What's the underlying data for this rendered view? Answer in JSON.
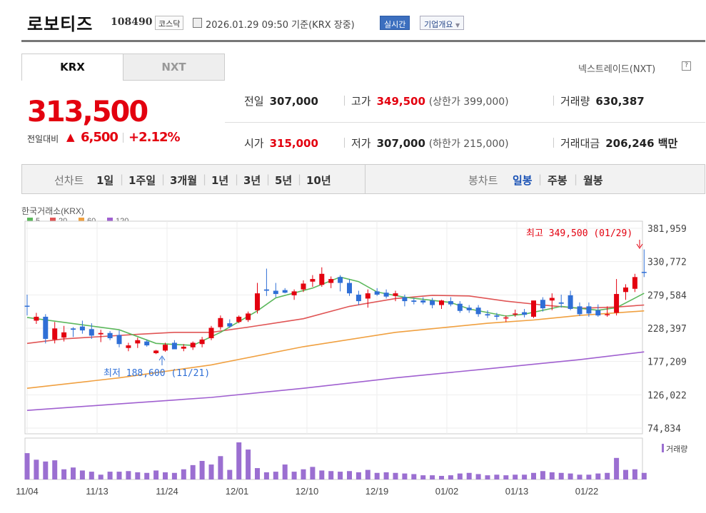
{
  "header": {
    "name": "로보티즈",
    "code": "108490",
    "market": "코스닥",
    "datetime": "2026.01.29 09:50",
    "basis": "기준(KRX 장중)",
    "realtime": "실시간",
    "corp_info": "기업개요"
  },
  "tabs": [
    "KRX",
    "NXT"
  ],
  "nxt_link": "넥스트레이드(NXT)",
  "nxt_help": "?",
  "quote": {
    "price": "313,500",
    "change_label": "전일대비",
    "change_arrow": "▲",
    "change": "6,500",
    "change_pct": "+2.12%"
  },
  "stats": {
    "prev_label": "전일",
    "prev": "307,000",
    "high_label": "고가",
    "high": "349,500",
    "upper": "(상한가 399,000)",
    "volume_label": "거래량",
    "volume": "630,387",
    "open_label": "시가",
    "open": "315,000",
    "low_label": "저가",
    "low": "307,000",
    "lower": "(하한가 215,000)",
    "value_label": "거래대금",
    "value": "206,246 백만"
  },
  "period_bar": {
    "label": "선차트",
    "items": [
      "1일",
      "1주일",
      "3개월",
      "1년",
      "3년",
      "5년",
      "10년"
    ],
    "candle_label": "봉차트",
    "candle_items": [
      "일봉",
      "주봉",
      "월봉"
    ],
    "selected_candle": "일봉"
  },
  "colors": {
    "up": "#e3000f",
    "down": "#2f6fd6",
    "ma5": "#5cb85c",
    "ma20": "#e05555",
    "ma60": "#f0a040",
    "ma120": "#a060d0"
  },
  "chart_data": {
    "type": "candlestick",
    "title": "한국거래소(KRX)",
    "legend": [
      {
        "name": "5",
        "color": "#5cb85c"
      },
      {
        "name": "20",
        "color": "#e05555"
      },
      {
        "name": "60",
        "color": "#f0a040"
      },
      {
        "name": "120",
        "color": "#a060d0"
      }
    ],
    "y_ticks": [
      "381,959",
      "330,772",
      "279,584",
      "228,397",
      "177,209",
      "126,022",
      "74,834"
    ],
    "ylim": [
      74834,
      381959
    ],
    "x_ticks": [
      "11/04",
      "11/13",
      "11/24",
      "12/01",
      "12/10",
      "12/19",
      "01/02",
      "01/13",
      "01/22"
    ],
    "max_note": "최고 349,500 (01/29)",
    "min_note": "최저 188,600 (11/21)",
    "volume_label": "거래량",
    "candles": [
      [
        263000,
        280000,
        248000,
        262000
      ],
      [
        240000,
        252000,
        235000,
        246000
      ],
      [
        246000,
        250000,
        205000,
        212000
      ],
      [
        211000,
        238000,
        205000,
        228000
      ],
      [
        214000,
        232000,
        208000,
        222000
      ],
      [
        228000,
        230000,
        215000,
        226000
      ],
      [
        231000,
        240000,
        220000,
        225000
      ],
      [
        227000,
        236000,
        212000,
        217000
      ],
      [
        219000,
        226000,
        207000,
        221000
      ],
      [
        221000,
        224000,
        210000,
        213000
      ],
      [
        218000,
        225000,
        199000,
        204000
      ],
      [
        198000,
        206000,
        193000,
        202000
      ],
      [
        205000,
        214000,
        198000,
        210000
      ],
      [
        208000,
        211000,
        200000,
        202000
      ],
      [
        190000,
        195000,
        188600,
        194000
      ],
      [
        194000,
        206000,
        192000,
        203000
      ],
      [
        206000,
        210000,
        198000,
        196000
      ],
      [
        197000,
        204000,
        193000,
        200000
      ],
      [
        199000,
        208000,
        195000,
        206000
      ],
      [
        204000,
        215000,
        199000,
        211000
      ],
      [
        213000,
        232000,
        210000,
        229000
      ],
      [
        230000,
        248000,
        226000,
        244000
      ],
      [
        236000,
        242000,
        229000,
        231000
      ],
      [
        238000,
        248000,
        236000,
        246000
      ],
      [
        241000,
        254000,
        238000,
        251000
      ],
      [
        256000,
        298000,
        251000,
        282000
      ],
      [
        288000,
        320000,
        278000,
        286000
      ],
      [
        286000,
        298000,
        276000,
        281000
      ],
      [
        287000,
        290000,
        282000,
        283000
      ],
      [
        279000,
        288000,
        272000,
        285000
      ],
      [
        288000,
        302000,
        284000,
        297000
      ],
      [
        300000,
        310000,
        292000,
        304000
      ],
      [
        295000,
        322000,
        292000,
        312000
      ],
      [
        298000,
        308000,
        290000,
        304000
      ],
      [
        307000,
        310000,
        285000,
        298000
      ],
      [
        298000,
        304000,
        278000,
        282000
      ],
      [
        280000,
        286000,
        264000,
        270000
      ],
      [
        274000,
        288000,
        260000,
        282000
      ],
      [
        285000,
        290000,
        278000,
        280000
      ],
      [
        283000,
        288000,
        274000,
        277000
      ],
      [
        278000,
        286000,
        270000,
        282000
      ],
      [
        276000,
        280000,
        262000,
        270000
      ],
      [
        271000,
        275000,
        265000,
        269000
      ],
      [
        271000,
        276000,
        265000,
        268000
      ],
      [
        271000,
        275000,
        259000,
        264000
      ],
      [
        264000,
        272000,
        258000,
        271000
      ],
      [
        270000,
        276000,
        262000,
        265000
      ],
      [
        266000,
        270000,
        252000,
        255000
      ],
      [
        260000,
        264000,
        252000,
        256000
      ],
      [
        260000,
        264000,
        246000,
        250000
      ],
      [
        250000,
        256000,
        244000,
        248000
      ],
      [
        248000,
        252000,
        241000,
        246000
      ],
      [
        244000,
        248000,
        238000,
        245000
      ],
      [
        250000,
        257000,
        246000,
        251000
      ],
      [
        253000,
        258000,
        245000,
        249000
      ],
      [
        246000,
        270000,
        244000,
        271000
      ],
      [
        272000,
        276000,
        254000,
        259000
      ],
      [
        271000,
        282000,
        256000,
        275000
      ],
      [
        268000,
        280000,
        260000,
        266000
      ],
      [
        279000,
        286000,
        256000,
        258000
      ],
      [
        262000,
        268000,
        247000,
        250000
      ],
      [
        262000,
        268000,
        246000,
        251000
      ],
      [
        256000,
        265000,
        246000,
        248000
      ],
      [
        250000,
        262000,
        246000,
        250000
      ],
      [
        252000,
        304000,
        248000,
        281000
      ],
      [
        284000,
        296000,
        272000,
        291000
      ],
      [
        289000,
        312000,
        284000,
        307000
      ],
      [
        315000,
        349500,
        307000,
        313500
      ]
    ],
    "volumes": [
      4.4,
      3.3,
      3.0,
      3.2,
      1.7,
      2.0,
      1.5,
      1.3,
      0.8,
      1.3,
      1.3,
      1.4,
      1.2,
      1.1,
      1.5,
      1.2,
      1.1,
      1.7,
      2.4,
      3.1,
      2.5,
      3.9,
      1.6,
      6.2,
      5.0,
      1.9,
      1.2,
      1.3,
      2.5,
      1.3,
      1.7,
      2.1,
      1.5,
      1.4,
      1.3,
      1.4,
      1.2,
      1.6,
      1.1,
      1.2,
      1.1,
      1.0,
      0.9,
      0.7,
      0.7,
      0.6,
      0.7,
      1.0,
      1.1,
      0.9,
      0.7,
      0.8,
      0.7,
      0.8,
      0.8,
      1.1,
      1.4,
      1.2,
      1.1,
      1.0,
      0.8,
      0.8,
      1.0,
      1.1,
      3.6,
      1.6,
      1.7,
      1.1
    ],
    "ma_lines": {
      "ma5": [
        [
          0,
          245000
        ],
        [
          10,
          226000
        ],
        [
          14,
          205000
        ],
        [
          18,
          202000
        ],
        [
          21,
          222000
        ],
        [
          25,
          255000
        ],
        [
          27,
          275000
        ],
        [
          31,
          290000
        ],
        [
          34,
          307000
        ],
        [
          36,
          300000
        ],
        [
          38,
          284000
        ],
        [
          41,
          276000
        ],
        [
          46,
          268000
        ],
        [
          48,
          258000
        ],
        [
          52,
          247000
        ],
        [
          54,
          250000
        ],
        [
          58,
          262000
        ],
        [
          62,
          256000
        ],
        [
          64,
          260000
        ],
        [
          67,
          282000
        ]
      ],
      "ma20": [
        [
          0,
          205000
        ],
        [
          4,
          212000
        ],
        [
          12,
          219000
        ],
        [
          16,
          222000
        ],
        [
          20,
          222000
        ],
        [
          24,
          230000
        ],
        [
          30,
          243000
        ],
        [
          35,
          262000
        ],
        [
          40,
          274000
        ],
        [
          44,
          279000
        ],
        [
          48,
          278000
        ],
        [
          52,
          270000
        ],
        [
          56,
          264000
        ],
        [
          60,
          259000
        ],
        [
          64,
          261000
        ],
        [
          67,
          264000
        ]
      ],
      "ma60": [
        [
          0,
          136000
        ],
        [
          10,
          152000
        ],
        [
          20,
          172000
        ],
        [
          30,
          200000
        ],
        [
          40,
          222000
        ],
        [
          50,
          236000
        ],
        [
          55,
          241000
        ],
        [
          60,
          248000
        ],
        [
          67,
          255000
        ]
      ],
      "ma120": [
        [
          0,
          102000
        ],
        [
          10,
          112000
        ],
        [
          20,
          122000
        ],
        [
          30,
          136000
        ],
        [
          40,
          152000
        ],
        [
          50,
          166000
        ],
        [
          60,
          180000
        ],
        [
          67,
          192000
        ]
      ]
    }
  }
}
